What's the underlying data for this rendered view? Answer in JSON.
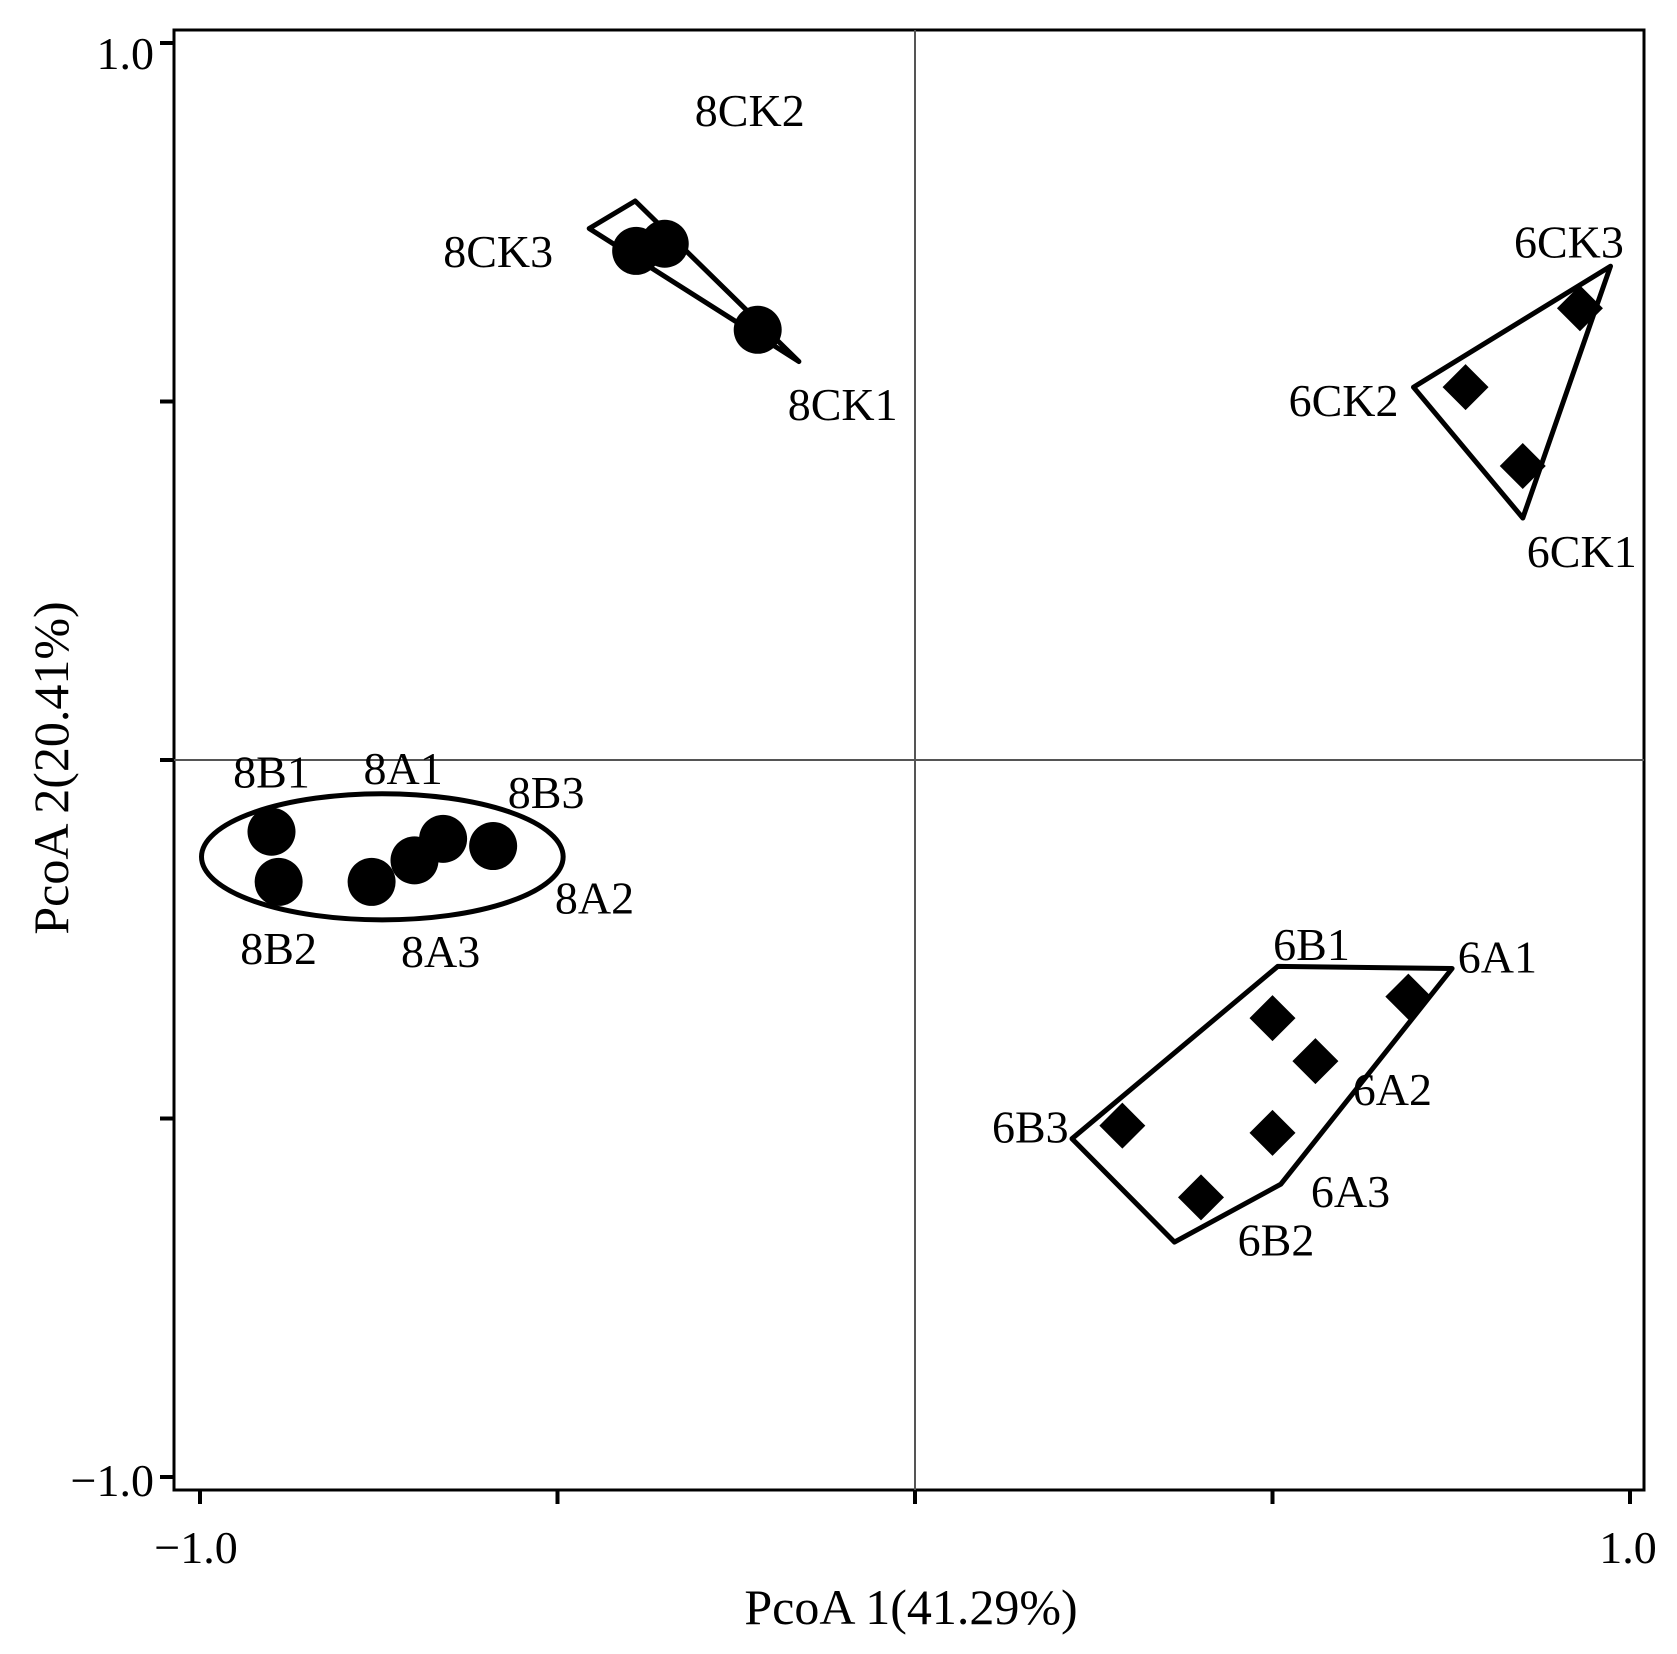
{
  "chart_data": {
    "type": "scatter",
    "title": "",
    "xlabel": "PcoA 1(41.29%)",
    "ylabel": "PcoA 2(20.41%)",
    "xlim": [
      -1.0,
      1.0
    ],
    "ylim": [
      -1.0,
      1.0
    ],
    "x_tick_labels": [
      "−1.0",
      "1.0"
    ],
    "y_tick_labels": [
      "1.0",
      "−1.0"
    ],
    "x_ticks": [
      -1.0,
      -0.5,
      0,
      0.5,
      1.0
    ],
    "y_ticks": [
      -1.0,
      -0.5,
      0,
      0.5,
      1.0
    ],
    "reference_lines": {
      "x": 0,
      "y": 0
    },
    "grid": false,
    "marker_color": "#000000",
    "series": [
      {
        "marker": "circle",
        "points": [
          {
            "label": "8CK1",
            "x": -0.22,
            "y": 0.6
          },
          {
            "label": "8CK2",
            "x": -0.35,
            "y": 0.72
          },
          {
            "label": "8CK3",
            "x": -0.39,
            "y": 0.71
          },
          {
            "label": "8B1",
            "x": -0.9,
            "y": -0.1
          },
          {
            "label": "8B2",
            "x": -0.89,
            "y": -0.17
          },
          {
            "label": "8A1",
            "x": -0.66,
            "y": -0.11
          },
          {
            "label": "8A2",
            "x": -0.7,
            "y": -0.14
          },
          {
            "label": "8A3",
            "x": -0.76,
            "y": -0.17
          },
          {
            "label": "8B3",
            "x": -0.59,
            "y": -0.12
          }
        ]
      },
      {
        "marker": "diamond",
        "points": [
          {
            "label": "6CK1",
            "x": 0.85,
            "y": 0.41
          },
          {
            "label": "6CK2",
            "x": 0.77,
            "y": 0.52
          },
          {
            "label": "6CK3",
            "x": 0.93,
            "y": 0.63
          },
          {
            "label": "6A1",
            "x": 0.69,
            "y": -0.33
          },
          {
            "label": "6A2",
            "x": 0.56,
            "y": -0.42
          },
          {
            "label": "6A3",
            "x": 0.5,
            "y": -0.52
          },
          {
            "label": "6B1",
            "x": 0.5,
            "y": -0.36
          },
          {
            "label": "6B2",
            "x": 0.4,
            "y": -0.61
          },
          {
            "label": "6B3",
            "x": 0.29,
            "y": -0.51
          }
        ]
      }
    ],
    "groups": [
      {
        "shape": "polygon",
        "members": [
          "8CK1",
          "8CK2",
          "8CK3"
        ]
      },
      {
        "shape": "ellipse",
        "members": [
          "8B1",
          "8B2",
          "8A1",
          "8A2",
          "8A3",
          "8B3"
        ]
      },
      {
        "shape": "polygon",
        "members": [
          "6CK1",
          "6CK2",
          "6CK3"
        ]
      },
      {
        "shape": "polygon",
        "members": [
          "6A1",
          "6A2",
          "6A3",
          "6B1",
          "6B2",
          "6B3"
        ]
      }
    ]
  }
}
